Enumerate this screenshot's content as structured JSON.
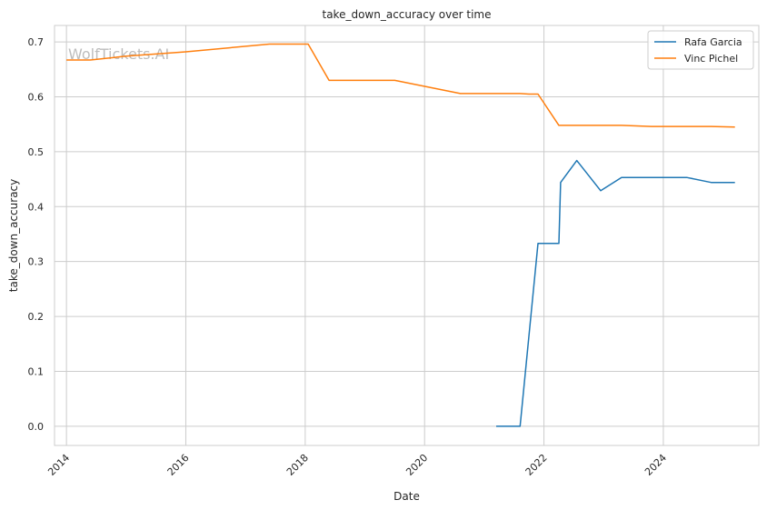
{
  "chart_data": {
    "type": "line",
    "title": "take_down_accuracy over time",
    "xlabel": "Date",
    "ylabel": "take_down_accuracy",
    "watermark": "WolfTickets.AI",
    "xlim": [
      2013.8,
      2025.6
    ],
    "ylim": [
      -0.035,
      0.73
    ],
    "xticks": [
      "2014",
      "2016",
      "2018",
      "2020",
      "2022",
      "2024"
    ],
    "yticks": [
      "0.0",
      "0.1",
      "0.2",
      "0.3",
      "0.4",
      "0.5",
      "0.6",
      "0.7"
    ],
    "grid": true,
    "legend_position": "top-right",
    "series": [
      {
        "name": "Rafa Garcia",
        "color": "#1f77b4",
        "points": [
          [
            2021.2,
            0.0
          ],
          [
            2021.6,
            0.0
          ],
          [
            2021.9,
            0.333
          ],
          [
            2022.25,
            0.333
          ],
          [
            2022.28,
            0.444
          ],
          [
            2022.55,
            0.484
          ],
          [
            2022.95,
            0.429
          ],
          [
            2023.3,
            0.453
          ],
          [
            2024.1,
            0.453
          ],
          [
            2024.4,
            0.453
          ],
          [
            2024.8,
            0.444
          ],
          [
            2025.2,
            0.444
          ]
        ]
      },
      {
        "name": "Vinc Pichel",
        "color": "#ff7f0e",
        "points": [
          [
            2014.0,
            0.667
          ],
          [
            2014.4,
            0.667
          ],
          [
            2015.0,
            0.674
          ],
          [
            2016.0,
            0.682
          ],
          [
            2017.4,
            0.696
          ],
          [
            2018.05,
            0.696
          ],
          [
            2018.4,
            0.63
          ],
          [
            2019.5,
            0.63
          ],
          [
            2020.6,
            0.606
          ],
          [
            2021.6,
            0.606
          ],
          [
            2021.75,
            0.605
          ],
          [
            2021.9,
            0.605
          ],
          [
            2022.25,
            0.548
          ],
          [
            2023.3,
            0.548
          ],
          [
            2023.8,
            0.546
          ],
          [
            2024.8,
            0.546
          ],
          [
            2025.2,
            0.545
          ]
        ]
      }
    ]
  }
}
